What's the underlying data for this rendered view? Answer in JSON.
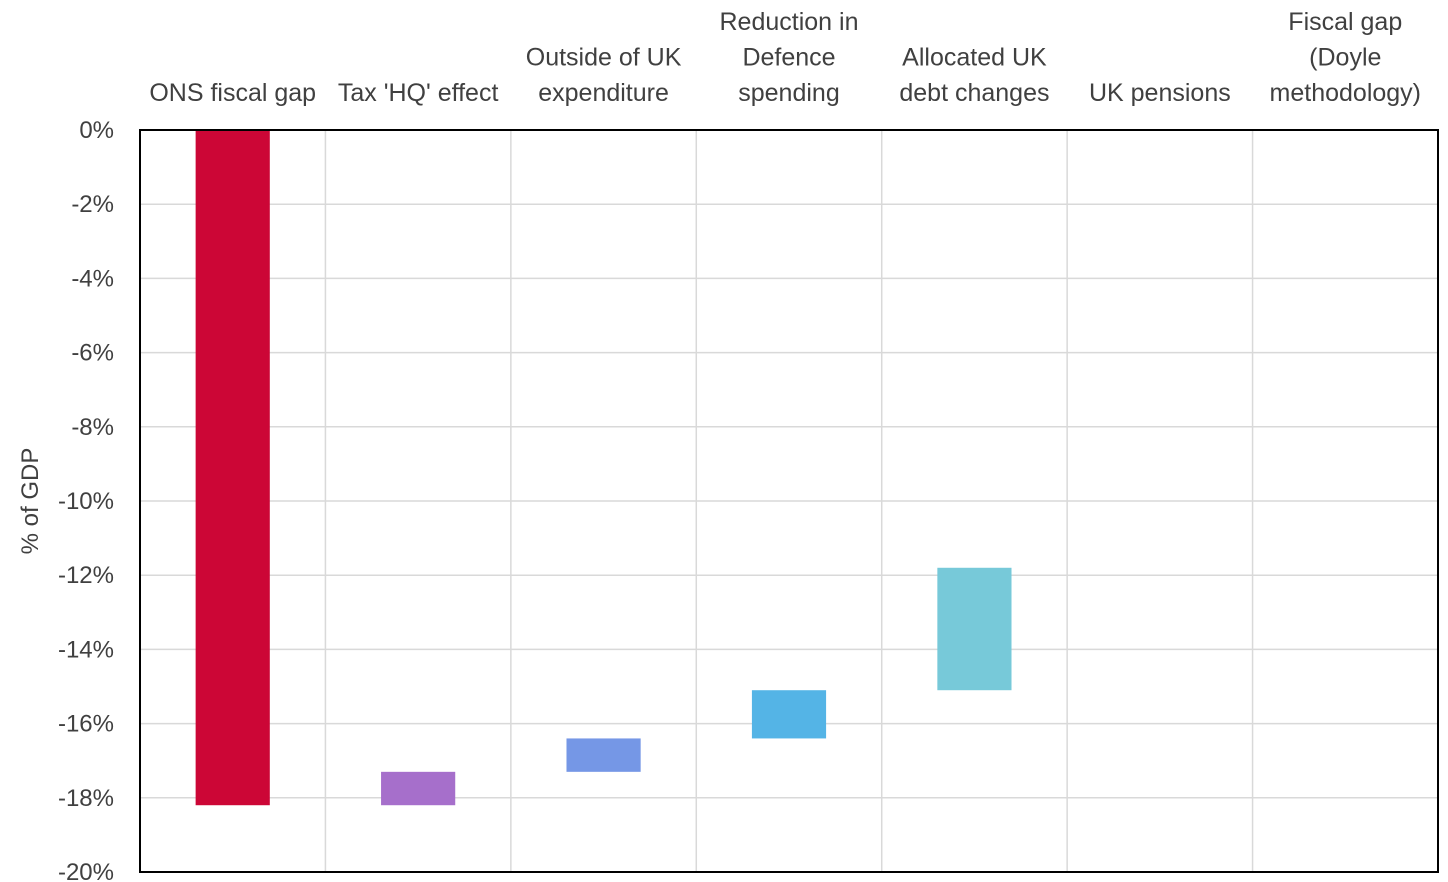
{
  "chart_data": {
    "type": "bar",
    "subtype": "waterfall",
    "categories": [
      [
        "ONS fiscal gap"
      ],
      [
        "Tax 'HQ' effect"
      ],
      [
        "Outside of UK",
        "expenditure"
      ],
      [
        "Reduction in",
        "Defence",
        "spending"
      ],
      [
        "Allocated UK",
        "debt changes"
      ],
      [
        "UK pensions"
      ],
      [
        "Fiscal gap",
        "(Doyle",
        "methodology)"
      ]
    ],
    "series": [
      {
        "values": [
          {
            "start": 0,
            "end": -18.2,
            "color": "#cc0636"
          },
          {
            "start": -18.2,
            "end": -17.3,
            "color": "#a66fcb"
          },
          {
            "start": -17.3,
            "end": -16.4,
            "color": "#7597e6"
          },
          {
            "start": -16.4,
            "end": -15.1,
            "color": "#54b4e6"
          },
          {
            "start": -15.1,
            "end": -11.8,
            "color": "#77c9d9"
          },
          null,
          null
        ]
      }
    ],
    "ylabel": "% of GDP",
    "ylim": [
      -20,
      0
    ],
    "yticks": [
      0,
      -2,
      -4,
      -6,
      -8,
      -10,
      -12,
      -14,
      -16,
      -18,
      -20
    ],
    "ytick_labels": [
      "0%",
      "-2%",
      "-4%",
      "-6%",
      "-8%",
      "-10%",
      "-12%",
      "-14%",
      "-16%",
      "-18%",
      "-20%"
    ],
    "grid": true,
    "legend": "none",
    "category_label_position": "top"
  }
}
